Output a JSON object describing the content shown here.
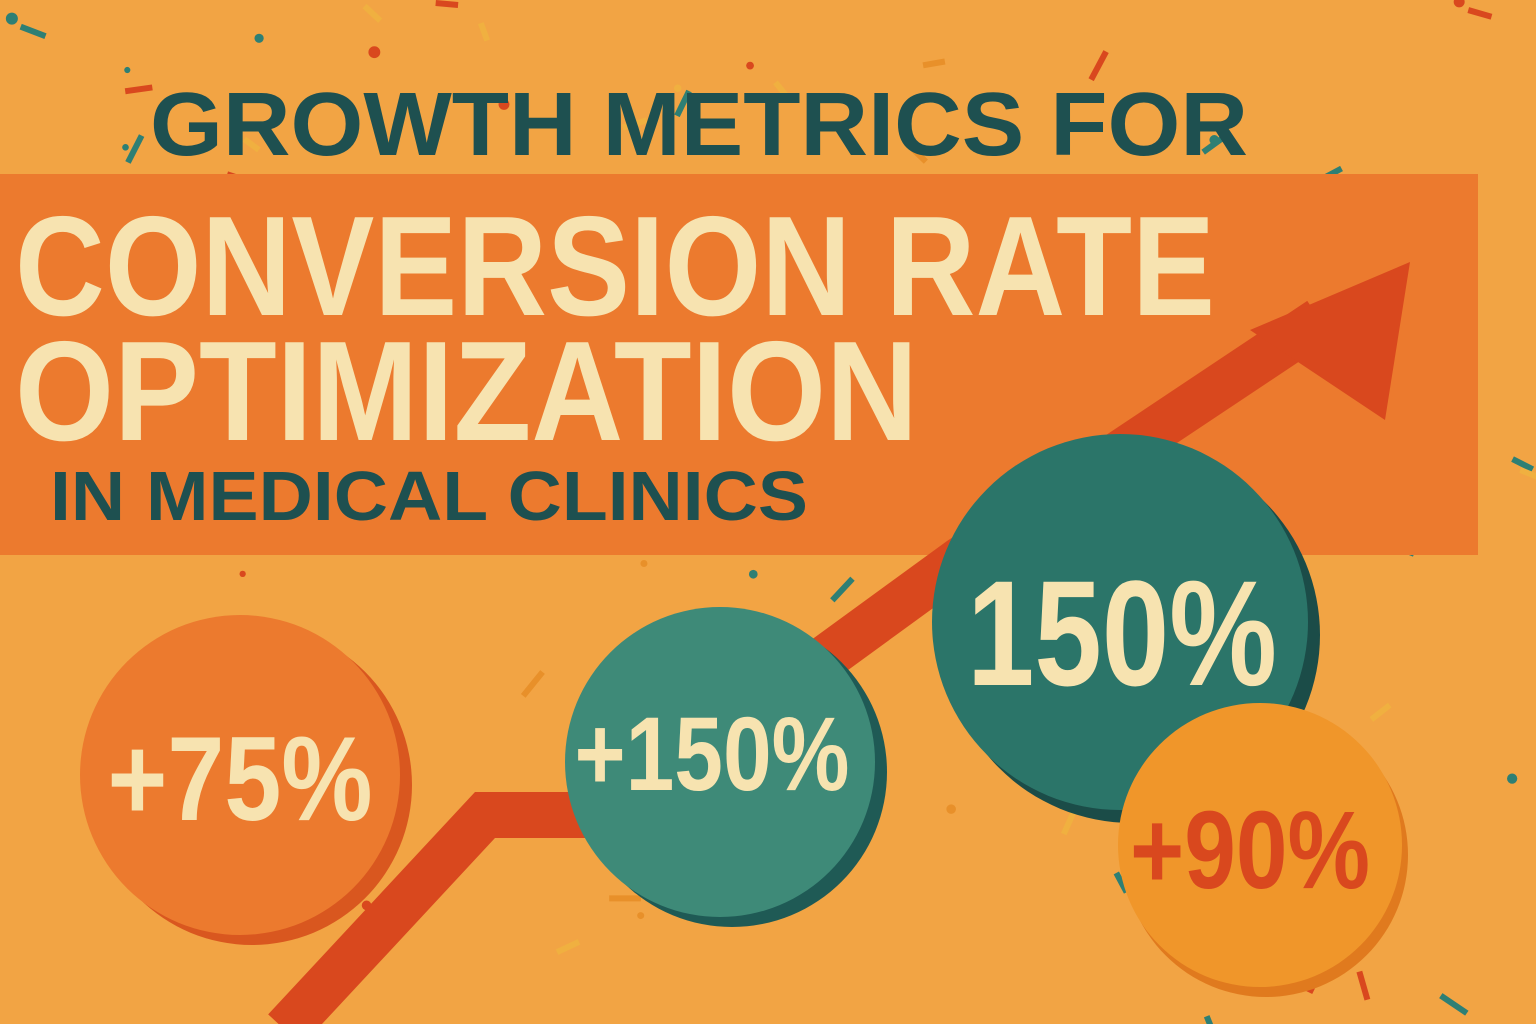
{
  "title": {
    "line1": "GROWTH METRICS FOR",
    "line2": "CONVERSION RATE",
    "line3": "OPTIMIZATION",
    "line4": "IN MEDICAL CLINICS"
  },
  "stats": [
    {
      "label": "+75%",
      "fill": "#EC7A2E",
      "shadow": "#D9571F",
      "text_color": "#F7E3B0"
    },
    {
      "label": "+150%",
      "fill": "#3E8A78",
      "shadow": "#1F5A55",
      "text_color": "#F7E3B0"
    },
    {
      "label": "150%",
      "fill": "#2B7569",
      "shadow": "#1B4C48",
      "text_color": "#F7E3B0"
    },
    {
      "label": "+90%",
      "fill": "#F0962A",
      "shadow": "#E07A1E",
      "text_color": "#D9481E"
    }
  ],
  "colors": {
    "background": "#F2A444",
    "banner": "#EC7A2E",
    "title_dark": "#1E5050",
    "title_light": "#F7E3B0",
    "arrow": "#D9481E"
  },
  "icons": [
    "trend-up-arrow-icon",
    "confetti-decoration"
  ]
}
